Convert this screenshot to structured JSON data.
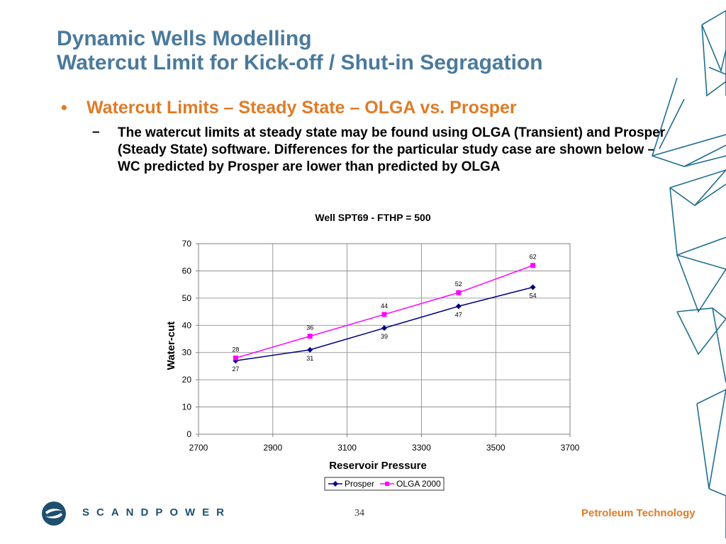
{
  "slide": {
    "title_line1": "Dynamic Wells Modelling",
    "title_line2": "Watercut Limit for Kick-off / Shut-in Segragation",
    "bullet_marker": "•",
    "bullet_text": "Watercut Limits – Steady State – OLGA vs. Prosper",
    "dash_marker": "–",
    "body_text": "The watercut limits at steady state may be found using OLGA (Transient) and Prosper (Steady State) software. Differences for the particular study case are shown below – WC predicted by Prosper are lower than predicted by OLGA"
  },
  "footer": {
    "brand": "SCANDPOWER",
    "page_number": "34",
    "tagline": "Petroleum Technology",
    "logo_icon": "scandpower-logo-icon"
  },
  "colors": {
    "title": "#4a7a9c",
    "accent": "#e07b26",
    "prosper": "#000080",
    "olga": "#ff00ff",
    "decoration": "#1f6f8f"
  },
  "chart_data": {
    "type": "line",
    "title": "Well SPT69 - FTHP = 500",
    "xlabel": "Reservoir Pressure",
    "ylabel": "Water-cut",
    "xlim": [
      2700,
      3700
    ],
    "ylim": [
      0,
      70
    ],
    "xticks": [
      2700,
      2900,
      3100,
      3300,
      3500,
      3700
    ],
    "yticks": [
      0,
      10,
      20,
      30,
      40,
      50,
      60,
      70
    ],
    "grid": true,
    "legend": "bottom",
    "series": [
      {
        "name": "Prosper",
        "x": [
          2800,
          3000,
          3200,
          3400,
          3600
        ],
        "values": [
          27,
          31,
          39,
          47,
          54
        ],
        "color": "#000080",
        "marker": "diamond"
      },
      {
        "name": "OLGA 2000",
        "x": [
          2800,
          3000,
          3200,
          3400,
          3600
        ],
        "values": [
          28,
          36,
          44,
          52,
          62
        ],
        "color": "#ff00ff",
        "marker": "square"
      }
    ]
  }
}
